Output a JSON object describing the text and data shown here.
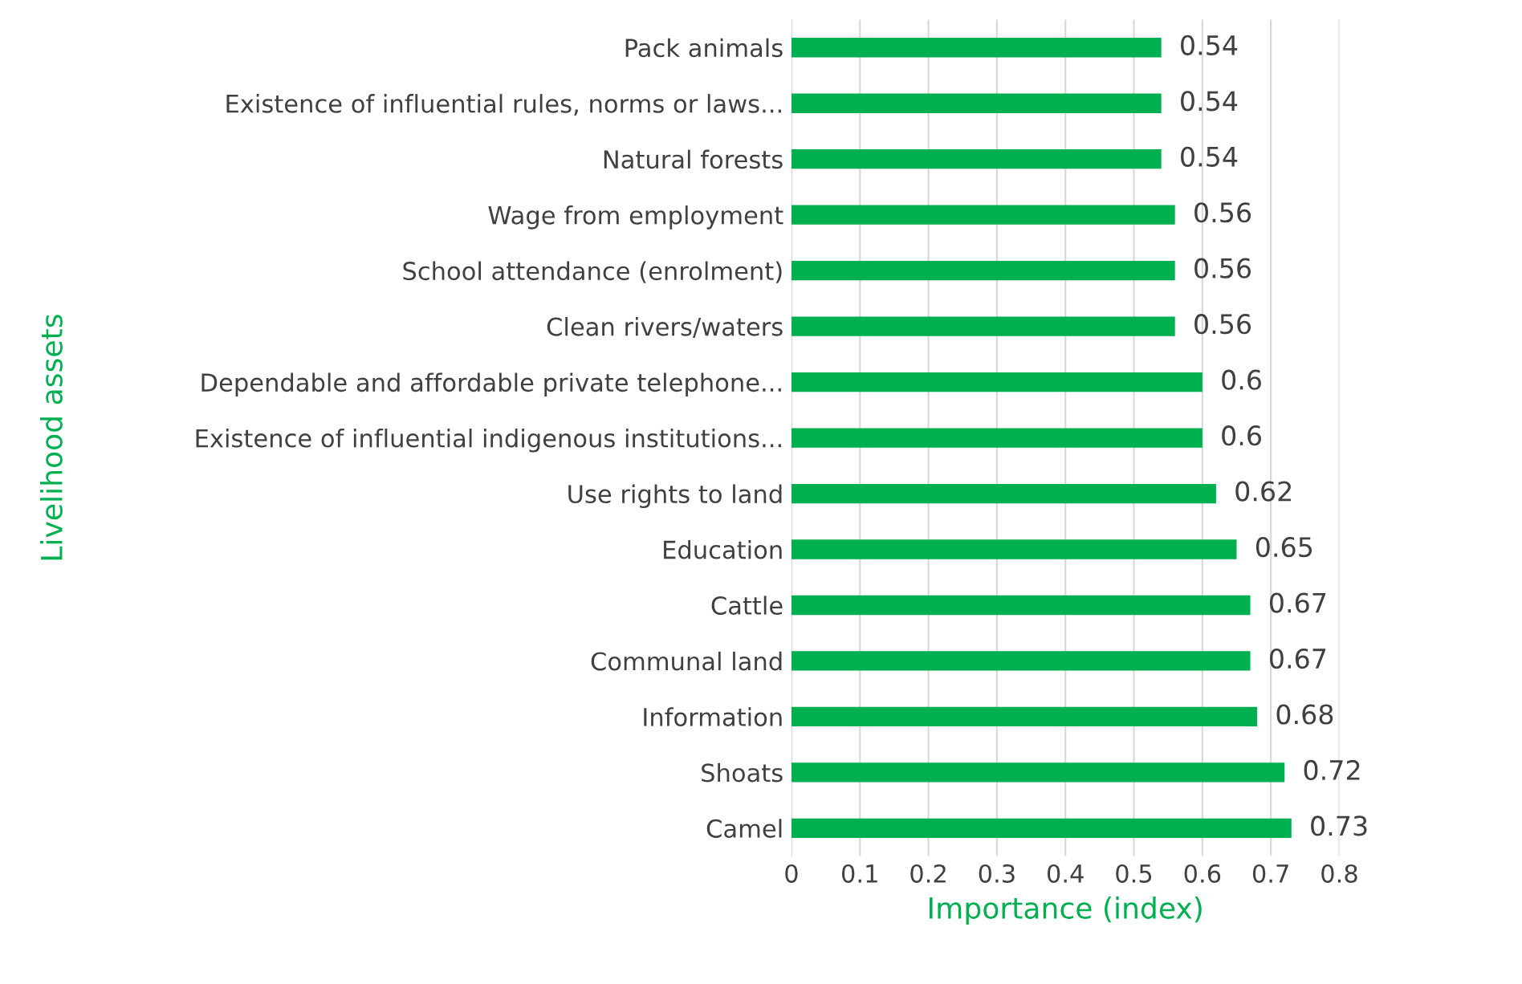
{
  "chart_data": {
    "type": "bar",
    "orientation": "horizontal",
    "xlabel": "Importance (index)",
    "ylabel": "Livelihood assets",
    "categories": [
      "Pack animals",
      "Existence of influential rules, norms or laws...",
      "Natural forests",
      "Wage from employment",
      "School attendance (enrolment)",
      "Clean rivers/waters",
      "Dependable and affordable private telephone...",
      "Existence of influential indigenous institutions...",
      "Use rights to land",
      "Education",
      "Cattle",
      "Communal land",
      "Information",
      "Shoats",
      "Camel"
    ],
    "values": [
      0.54,
      0.54,
      0.54,
      0.56,
      0.56,
      0.56,
      0.6,
      0.6,
      0.62,
      0.65,
      0.67,
      0.67,
      0.68,
      0.72,
      0.73
    ],
    "color": "#00b050",
    "xlim": [
      0,
      0.8
    ],
    "xticks": [
      0,
      0.1,
      0.2,
      0.3,
      0.4,
      0.5,
      0.6,
      0.7,
      0.8
    ],
    "grid": "x",
    "data_labels": true
  }
}
